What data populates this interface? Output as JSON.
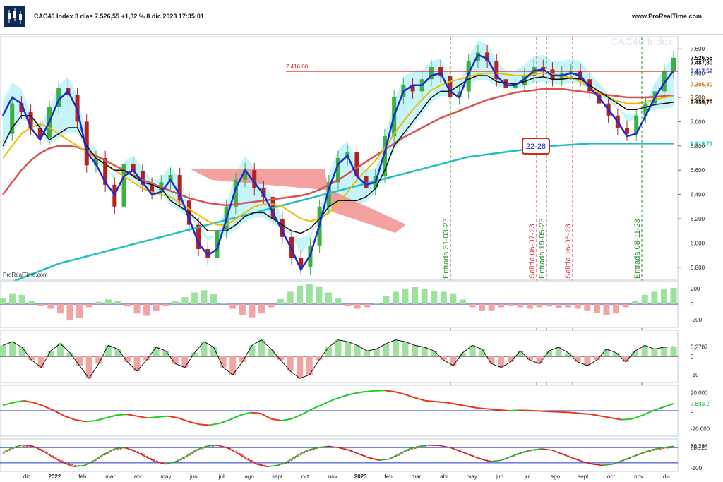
{
  "header": {
    "title": "CAC40 Index 3 días 7.526,55 +1,32 % 8 dic 2023 17:35:01",
    "brand": "www.ProRealTime.com"
  },
  "colors": {
    "price_up": "#3cb043",
    "price_down": "#b22222",
    "blue_line": "#1a2bd0",
    "black_line": "#111111",
    "yellow_line": "#f5b800",
    "red_ma": "#d9534f",
    "teal_ma": "#1fbfbf",
    "kumo_bull": "#7fe6f5",
    "kumo_bear": "#f08a8a",
    "resistance": "#e02020",
    "entry_line": "#2a8f2a",
    "exit_line": "#e0303a"
  },
  "chart_data": [
    {
      "type": "line",
      "panel": "price",
      "watermark": "CAC40 Index",
      "footer_label": "ProRealTime.com",
      "x_axis_labels": [
        "dic",
        "2022",
        "feb",
        "mar",
        "abr",
        "may",
        "jun",
        "jul",
        "ago",
        "sept",
        "oct",
        "nov",
        "2023",
        "feb",
        "mar",
        "abr",
        "may",
        "jun",
        "jul",
        "ago",
        "sept",
        "oct",
        "nov",
        "dic"
      ],
      "ylim": [
        5700,
        7700
      ],
      "y_ticks": [
        "5.800",
        "6.000",
        "6.200",
        "6.400",
        "6.600",
        "6.800",
        "7.000",
        "7.200",
        "7.400",
        "7.600"
      ],
      "price_tags": [
        "7.526,55",
        "7.487,80",
        "7.417,52",
        "7.306,80",
        "7.169,75",
        "7.159,75",
        "6.819,71"
      ],
      "resistance": {
        "value": 7416.0,
        "label": "7.416,00"
      },
      "boxed_label": "22-28",
      "signals": [
        {
          "label": "Entrada 31-03-23",
          "kind": "entry"
        },
        {
          "label": "Salida 06-07-23",
          "kind": "exit"
        },
        {
          "label": "Entrada 19-05-23",
          "kind": "entry"
        },
        {
          "label": "Salida 16-08-23",
          "kind": "exit"
        },
        {
          "label": "Entrada 08-11-23",
          "kind": "entry"
        }
      ],
      "close_series": [
        6900,
        7150,
        7080,
        6950,
        6870,
        7120,
        7280,
        7220,
        7000,
        6640,
        6700,
        6480,
        6300,
        6650,
        6590,
        6480,
        6420,
        6500,
        6560,
        6350,
        6150,
        5950,
        5880,
        6100,
        6300,
        6520,
        6600,
        6450,
        6380,
        6200,
        6050,
        5880,
        5800,
        5980,
        6300,
        6500,
        6700,
        6750,
        6550,
        6450,
        6550,
        6880,
        7200,
        7300,
        7250,
        7350,
        7450,
        7380,
        7200,
        7250,
        7500,
        7570,
        7500,
        7350,
        7280,
        7300,
        7380,
        7450,
        7430,
        7350,
        7400,
        7420,
        7350,
        7250,
        7150,
        7050,
        6950,
        6900,
        7050,
        7150,
        7250,
        7420,
        7526.55
      ],
      "series": [
        {
          "name": "",
          "role": "fast",
          "values": [
            7050,
            7200,
            7150,
            6950,
            6850,
            7000,
            7180,
            7250,
            7100,
            6750,
            6650,
            6500,
            6400,
            6550,
            6600,
            6500,
            6400,
            6420,
            6520,
            6400,
            6200,
            6000,
            5900,
            5950,
            6200,
            6450,
            6600,
            6500,
            6400,
            6250,
            6100,
            5950,
            5780,
            5900,
            6150,
            6450,
            6650,
            6720,
            6550,
            6480,
            6500,
            6750,
            7050,
            7250,
            7300,
            7300,
            7380,
            7400,
            7250,
            7200,
            7400,
            7550,
            7520,
            7380,
            7300,
            7300,
            7350,
            7420,
            7430,
            7380,
            7380,
            7400,
            7380,
            7280,
            7200,
            7100,
            7000,
            6880,
            6900,
            7050,
            7200,
            7320,
            7420
          ]
        },
        {
          "name": "",
          "role": "kijun",
          "values": [
            6800,
            6950,
            7050,
            7050,
            6950,
            6850,
            6900,
            6950,
            6950,
            6800,
            6700,
            6650,
            6600,
            6600,
            6550,
            6500,
            6480,
            6450,
            6350,
            6300,
            6250,
            6180,
            6100,
            6100,
            6100,
            6150,
            6220,
            6250,
            6250,
            6200,
            6150,
            6100,
            6080,
            6120,
            6200,
            6300,
            6350,
            6350,
            6350,
            6380,
            6450,
            6600,
            6800,
            6900,
            7000,
            7100,
            7200,
            7250,
            7250,
            7300,
            7350,
            7380,
            7380,
            7330,
            7320,
            7310,
            7330,
            7360,
            7370,
            7350,
            7350,
            7360,
            7350,
            7300,
            7250,
            7200,
            7150,
            7100,
            7100,
            7120,
            7140,
            7150,
            7160
          ]
        },
        {
          "name": "",
          "role": "mm50",
          "values": [
            6700,
            6800,
            6900,
            6950,
            6980,
            6950,
            6900,
            6850,
            6800,
            6750,
            6700,
            6650,
            6600,
            6550,
            6500,
            6450,
            6420,
            6400,
            6380,
            6330,
            6280,
            6230,
            6180,
            6150,
            6150,
            6200,
            6250,
            6300,
            6320,
            6320,
            6300,
            6250,
            6200,
            6180,
            6200,
            6250,
            6320,
            6420,
            6520,
            6600,
            6680,
            6780,
            6900,
            7000,
            7100,
            7180,
            7260,
            7300,
            7330,
            7350,
            7370,
            7390,
            7400,
            7400,
            7390,
            7380,
            7380,
            7390,
            7400,
            7390,
            7380,
            7360,
            7330,
            7280,
            7240,
            7200,
            7170,
            7150,
            7150,
            7160,
            7180,
            7200,
            7210
          ]
        },
        {
          "name": "",
          "role": "mm100",
          "values": [
            6400,
            6500,
            6600,
            6680,
            6740,
            6780,
            6800,
            6800,
            6790,
            6760,
            6720,
            6680,
            6640,
            6600,
            6560,
            6520,
            6490,
            6460,
            6430,
            6400,
            6370,
            6350,
            6330,
            6320,
            6310,
            6320,
            6330,
            6340,
            6350,
            6360,
            6370,
            6380,
            6390,
            6410,
            6440,
            6480,
            6520,
            6570,
            6620,
            6670,
            6720,
            6770,
            6820,
            6870,
            6910,
            6950,
            6990,
            7030,
            7060,
            7090,
            7120,
            7150,
            7180,
            7200,
            7220,
            7240,
            7250,
            7260,
            7270,
            7270,
            7270,
            7260,
            7250,
            7240,
            7230,
            7220,
            7210,
            7200,
            7200,
            7200,
            7205,
            7210,
            7215
          ]
        },
        {
          "name": "",
          "role": "mm200",
          "values": [
            5650,
            5680,
            5710,
            5740,
            5770,
            5800,
            5830,
            5850,
            5870,
            5890,
            5910,
            5930,
            5950,
            5970,
            5990,
            6010,
            6030,
            6050,
            6070,
            6090,
            6110,
            6130,
            6150,
            6170,
            6190,
            6210,
            6230,
            6250,
            6270,
            6290,
            6310,
            6330,
            6350,
            6370,
            6390,
            6410,
            6430,
            6450,
            6470,
            6490,
            6510,
            6530,
            6550,
            6570,
            6590,
            6610,
            6630,
            6650,
            6670,
            6690,
            6710,
            6720,
            6730,
            6740,
            6750,
            6760,
            6770,
            6780,
            6790,
            6800,
            6805,
            6810,
            6815,
            6819.71,
            6819.71,
            6819.71,
            6819.71,
            6819.71,
            6819.71,
            6819.71,
            6819.71,
            6819.71,
            6819.71
          ]
        }
      ]
    },
    {
      "type": "area",
      "panel": "oscillator_1",
      "ylim": [
        -300,
        300
      ],
      "y_ticks": [
        "200",
        "0",
        "-200"
      ],
      "values": [
        80,
        140,
        120,
        40,
        -20,
        -60,
        -120,
        -210,
        -180,
        -40,
        30,
        60,
        40,
        -30,
        -120,
        -150,
        -90,
        -20,
        40,
        90,
        150,
        180,
        130,
        20,
        -60,
        -140,
        -170,
        -120,
        -40,
        70,
        160,
        240,
        260,
        230,
        150,
        80,
        -20,
        -60,
        -40,
        20,
        100,
        160,
        200,
        220,
        200,
        170,
        160,
        140,
        60,
        -40,
        -90,
        -80,
        -40,
        -20,
        -40,
        -60,
        -40,
        -30,
        -50,
        -40,
        -60,
        -80,
        -110,
        -140,
        -120,
        -40,
        40,
        120,
        160,
        190,
        210
      ]
    },
    {
      "type": "area",
      "panel": "oscillator_2",
      "y_ticks": [
        "5,2787",
        "0",
        "-10"
      ],
      "last_value": "5,2787",
      "values": [
        6,
        8,
        5,
        -2,
        -6,
        3,
        7,
        2,
        -5,
        -12,
        -4,
        6,
        4,
        -3,
        -8,
        -2,
        5,
        3,
        -4,
        -6,
        2,
        8,
        5,
        -6,
        -10,
        -3,
        6,
        9,
        4,
        -2,
        -8,
        -12,
        -10,
        -2,
        5,
        9,
        8,
        6,
        3,
        4,
        7,
        9,
        8,
        6,
        5,
        3,
        -2,
        -5,
        2,
        6,
        4,
        -4,
        -6,
        -3,
        3,
        -2,
        -4,
        3,
        5,
        2,
        -3,
        -5,
        -2,
        4,
        2,
        -3,
        3,
        6,
        4,
        5,
        5.2787
      ]
    },
    {
      "type": "line",
      "panel": "oscillator_3",
      "y_ticks": [
        "20.000",
        "7.893,2",
        "0",
        "-20.000"
      ],
      "last_value": "7.893,2",
      "values": [
        6000,
        9000,
        11000,
        9000,
        5000,
        0,
        -6000,
        -10000,
        -12000,
        -11000,
        -8000,
        -5000,
        -4000,
        -6000,
        -8000,
        -7000,
        -6000,
        -8000,
        -12000,
        -15000,
        -16000,
        -14000,
        -10000,
        -5000,
        -2000,
        -3000,
        -9000,
        -11000,
        -9000,
        -4000,
        2000,
        7000,
        12000,
        16000,
        19000,
        21000,
        22000,
        22500,
        21000,
        18000,
        14000,
        11000,
        10000,
        9000,
        7000,
        5000,
        3000,
        2000,
        1000,
        0,
        500,
        200,
        -300,
        -1000,
        -1500,
        -2000,
        -3000,
        -4000,
        -6000,
        -8000,
        -10000,
        -9000,
        -5000,
        0,
        4000,
        7893.2
      ]
    },
    {
      "type": "line",
      "panel": "oscillator_4",
      "y_ticks": [
        "70,284",
        "60,120",
        "-100"
      ],
      "last_values": [
        "70,284",
        "60,120"
      ],
      "values": [
        20,
        60,
        80,
        70,
        30,
        -20,
        -60,
        -90,
        -80,
        -40,
        10,
        50,
        60,
        30,
        -10,
        -50,
        -70,
        -50,
        -10,
        40,
        70,
        80,
        60,
        20,
        -30,
        -70,
        -90,
        -80,
        -50,
        0,
        40,
        60,
        70,
        60,
        40,
        10,
        -20,
        -40,
        -30,
        10,
        50,
        70,
        80,
        75,
        60,
        30,
        0,
        -30,
        -50,
        -40,
        -10,
        20,
        40,
        50,
        40,
        10,
        -20,
        -50,
        -70,
        -80,
        -70,
        -40,
        -10,
        20,
        45,
        60,
        70.284
      ],
      "signal_values": [
        10,
        50,
        70,
        68,
        40,
        -10,
        -50,
        -80,
        -82,
        -50,
        0,
        40,
        55,
        40,
        0,
        -40,
        -65,
        -55,
        -20,
        30,
        60,
        75,
        65,
        30,
        -20,
        -60,
        -85,
        -82,
        -60,
        -10,
        30,
        55,
        65,
        62,
        45,
        15,
        -15,
        -35,
        -32,
        0,
        40,
        62,
        75,
        74,
        62,
        35,
        5,
        -25,
        -45,
        -42,
        -15,
        15,
        35,
        45,
        40,
        15,
        -15,
        -45,
        -65,
        -76,
        -72,
        -45,
        -15,
        15,
        38,
        52,
        60.12
      ]
    }
  ]
}
